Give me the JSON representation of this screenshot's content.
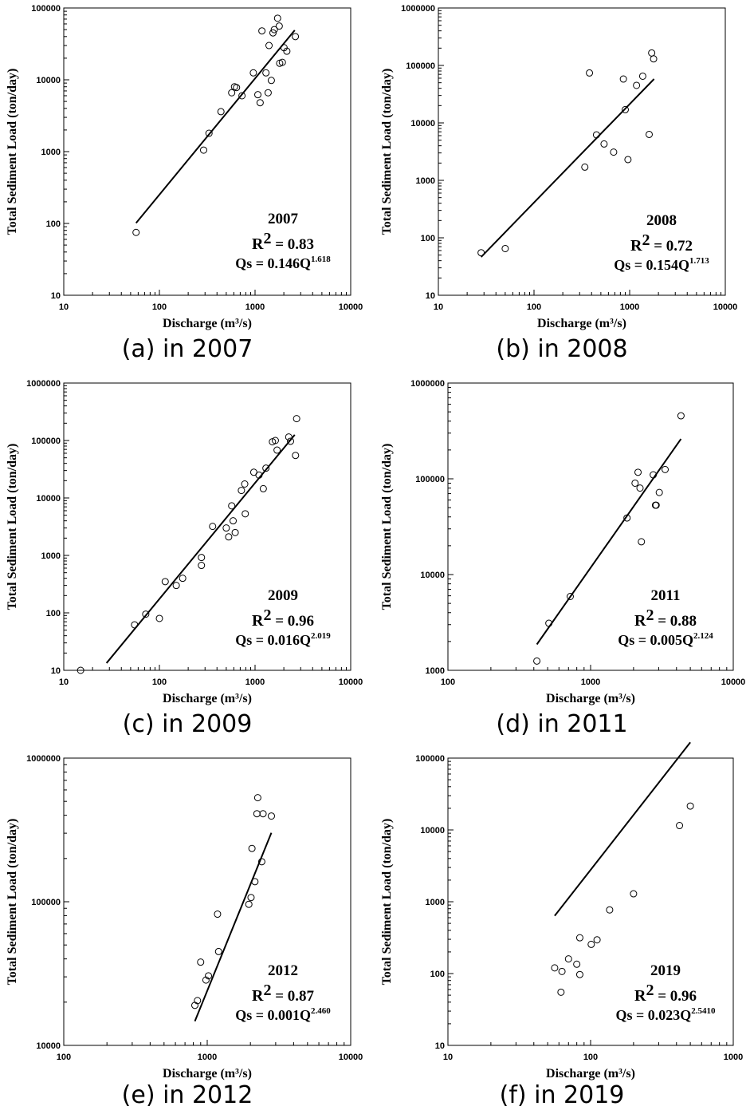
{
  "chart_data": [
    {
      "type": "scatter",
      "caption": "(a) in 2007",
      "xlabel": "Discharge (m³/s)",
      "ylabel": "Total Sediment Load (ton/day)",
      "xscale": "log",
      "yscale": "log",
      "xlim": [
        10,
        10000
      ],
      "ylim": [
        10,
        100000
      ],
      "xticks": [
        "10",
        "100",
        "1000",
        "10000"
      ],
      "yticks": [
        "10",
        "100",
        "1000",
        "10000",
        "100000"
      ],
      "annotation": {
        "year": "2007",
        "r2_prefix": "R",
        "r2_sup": "2",
        "r2_value": " = 0.83",
        "qs_prefix": "Qs = 0.146Q",
        "qs_exp": "1.618"
      },
      "fit": {
        "a": 0.146,
        "b": 1.618,
        "x_range": [
          57,
          2600
        ]
      },
      "points": [
        [
          57,
          75
        ],
        [
          290,
          1050
        ],
        [
          330,
          1800
        ],
        [
          440,
          3600
        ],
        [
          570,
          6600
        ],
        [
          610,
          8000
        ],
        [
          640,
          7800
        ],
        [
          730,
          6000
        ],
        [
          960,
          12500
        ],
        [
          1070,
          6200
        ],
        [
          1130,
          4800
        ],
        [
          1180,
          48000
        ],
        [
          1300,
          12500
        ],
        [
          1370,
          6600
        ],
        [
          1400,
          30000
        ],
        [
          1480,
          9800
        ],
        [
          1540,
          45000
        ],
        [
          1590,
          50000
        ],
        [
          1720,
          72000
        ],
        [
          1790,
          56000
        ],
        [
          1810,
          17000
        ],
        [
          1930,
          17500
        ],
        [
          2010,
          28000
        ],
        [
          2150,
          25000
        ],
        [
          2640,
          40000
        ]
      ]
    },
    {
      "type": "scatter",
      "caption": "(b) in 2008",
      "xlabel": "Discharge (m³/s)",
      "ylabel": "Total Sediment Load (ton/day)",
      "xscale": "log",
      "yscale": "log",
      "xlim": [
        10,
        10000
      ],
      "ylim": [
        10,
        1000000
      ],
      "xticks": [
        "10",
        "100",
        "1000",
        "10000"
      ],
      "yticks": [
        "10",
        "100",
        "1000",
        "10000",
        "100000",
        "1000000"
      ],
      "annotation": {
        "year": "2008",
        "r2_prefix": "R",
        "r2_sup": "2",
        "r2_value": " = 0.72",
        "qs_prefix": "Qs = 0.154Q",
        "qs_exp": "1.713"
      },
      "fit": {
        "a": 0.154,
        "b": 1.713,
        "x_range": [
          28,
          1800
        ]
      },
      "points": [
        [
          28,
          55
        ],
        [
          50,
          65
        ],
        [
          340,
          1700
        ],
        [
          380,
          74000
        ],
        [
          450,
          6200
        ],
        [
          540,
          4300
        ],
        [
          680,
          3100
        ],
        [
          860,
          58000
        ],
        [
          900,
          17000
        ],
        [
          960,
          2300
        ],
        [
          1180,
          45000
        ],
        [
          1370,
          65000
        ],
        [
          1600,
          6300
        ],
        [
          1700,
          165000
        ],
        [
          1780,
          130000
        ]
      ]
    },
    {
      "type": "scatter",
      "caption": "(c) in 2009",
      "xlabel": "Discharge (m³/s)",
      "ylabel": "Total Sediment Load (ton/day)",
      "xscale": "log",
      "yscale": "log",
      "xlim": [
        10,
        10000
      ],
      "ylim": [
        10,
        1000000
      ],
      "xticks": [
        "10",
        "100",
        "1000",
        "10000"
      ],
      "yticks": [
        "10",
        "100",
        "1000",
        "10000",
        "100000",
        "1000000"
      ],
      "annotation": {
        "year": "2009",
        "r2_prefix": "R",
        "r2_sup": "2",
        "r2_value": " = 0.96",
        "qs_prefix": "Qs = 0.016Q",
        "qs_exp": "2.019"
      },
      "fit": {
        "a": 0.016,
        "b": 2.019,
        "x_range": [
          28,
          2600
        ]
      },
      "points": [
        [
          15,
          10
        ],
        [
          55,
          62
        ],
        [
          72,
          95
        ],
        [
          100,
          80
        ],
        [
          115,
          350
        ],
        [
          150,
          300
        ],
        [
          175,
          400
        ],
        [
          275,
          920
        ],
        [
          275,
          670
        ],
        [
          360,
          3200
        ],
        [
          500,
          3000
        ],
        [
          530,
          2100
        ],
        [
          570,
          7300
        ],
        [
          590,
          4000
        ],
        [
          620,
          2500
        ],
        [
          720,
          13500
        ],
        [
          780,
          17500
        ],
        [
          790,
          5300
        ],
        [
          970,
          28000
        ],
        [
          1100,
          25000
        ],
        [
          1220,
          14500
        ],
        [
          1300,
          33000
        ],
        [
          1520,
          95000
        ],
        [
          1630,
          100000
        ],
        [
          1700,
          68000
        ],
        [
          2250,
          115000
        ],
        [
          2350,
          97000
        ],
        [
          2650,
          55000
        ],
        [
          2720,
          240000
        ]
      ]
    },
    {
      "type": "scatter",
      "caption": "(d) in 2011",
      "xlabel": "Discharge (m³/s)",
      "ylabel": "Total Sediment Load (ton/day)",
      "xscale": "log",
      "yscale": "log",
      "xlim": [
        100,
        10000
      ],
      "ylim": [
        1000,
        1000000
      ],
      "xticks": [
        "100",
        "1000",
        "10000"
      ],
      "yticks": [
        "1000",
        "10000",
        "100000",
        "1000000"
      ],
      "annotation": {
        "year": "2011",
        "r2_prefix": "R",
        "r2_sup": "2",
        "r2_value": " = 0.88",
        "qs_prefix": "Qs = 0.005Q",
        "qs_exp": "2.124"
      },
      "fit": {
        "a": 0.005,
        "b": 2.124,
        "x_range": [
          420,
          4300
        ]
      },
      "points": [
        [
          420,
          1250
        ],
        [
          510,
          3100
        ],
        [
          720,
          5900
        ],
        [
          1800,
          39000
        ],
        [
          2050,
          90000
        ],
        [
          2150,
          117000
        ],
        [
          2220,
          80000
        ],
        [
          2270,
          22000
        ],
        [
          2750,
          110000
        ],
        [
          2850,
          53000
        ],
        [
          2880,
          53000
        ],
        [
          3030,
          72000
        ],
        [
          3330,
          125000
        ],
        [
          4300,
          455000
        ]
      ]
    },
    {
      "type": "scatter",
      "caption": "(e) in 2012",
      "xlabel": "Discharge (m³/s)",
      "ylabel": "Total Sediment Load (ton/day)",
      "xscale": "log",
      "yscale": "log",
      "xlim": [
        100,
        10000
      ],
      "ylim": [
        10000,
        1000000
      ],
      "xticks": [
        "100",
        "1000",
        "10000"
      ],
      "yticks": [
        "10000",
        "100000",
        "1000000"
      ],
      "annotation": {
        "year": "2012",
        "r2_prefix": "R",
        "r2_sup": "2",
        "r2_value": " = 0.87",
        "qs_prefix": "Qs = 0.001Q",
        "qs_exp": "2.460"
      },
      "fit": {
        "a": 0.001,
        "b": 2.46,
        "x_range": [
          820,
          2800
        ]
      },
      "points": [
        [
          820,
          19000
        ],
        [
          855,
          20500
        ],
        [
          900,
          38000
        ],
        [
          980,
          28500
        ],
        [
          1020,
          30500
        ],
        [
          1180,
          82000
        ],
        [
          1200,
          45000
        ],
        [
          1950,
          96000
        ],
        [
          2020,
          107000
        ],
        [
          2050,
          235000
        ],
        [
          2150,
          138000
        ],
        [
          2220,
          410000
        ],
        [
          2250,
          530000
        ],
        [
          2400,
          190000
        ],
        [
          2450,
          410000
        ],
        [
          2800,
          395000
        ]
      ]
    },
    {
      "type": "scatter",
      "caption": "(f) in 2019",
      "xlabel": "Discharge (m³/s)",
      "ylabel": "Total Sediment Load (ton/day)",
      "xscale": "log",
      "yscale": "log",
      "xlim": [
        10,
        1000
      ],
      "ylim": [
        10,
        100000
      ],
      "xticks": [
        "10",
        "100",
        "1000"
      ],
      "yticks": [
        "10",
        "100",
        "1000",
        "10000",
        "100000"
      ],
      "annotation": {
        "year": "2019",
        "r2_prefix": "R",
        "r2_sup": "2",
        "r2_value": " = 0.96",
        "qs_prefix": "Qs = 0.023Q",
        "qs_exp": "2.5410"
      },
      "fit": {
        "a": 0.023,
        "b": 2.541,
        "x_range": [
          56,
          500
        ]
      },
      "points": [
        [
          56,
          120
        ],
        [
          62,
          55
        ],
        [
          63,
          107
        ],
        [
          70,
          160
        ],
        [
          80,
          135
        ],
        [
          84,
          315
        ],
        [
          84,
          97
        ],
        [
          101,
          255
        ],
        [
          111,
          295
        ],
        [
          136,
          770
        ],
        [
          200,
          1290
        ],
        [
          420,
          11500
        ],
        [
          500,
          21500
        ]
      ]
    }
  ]
}
